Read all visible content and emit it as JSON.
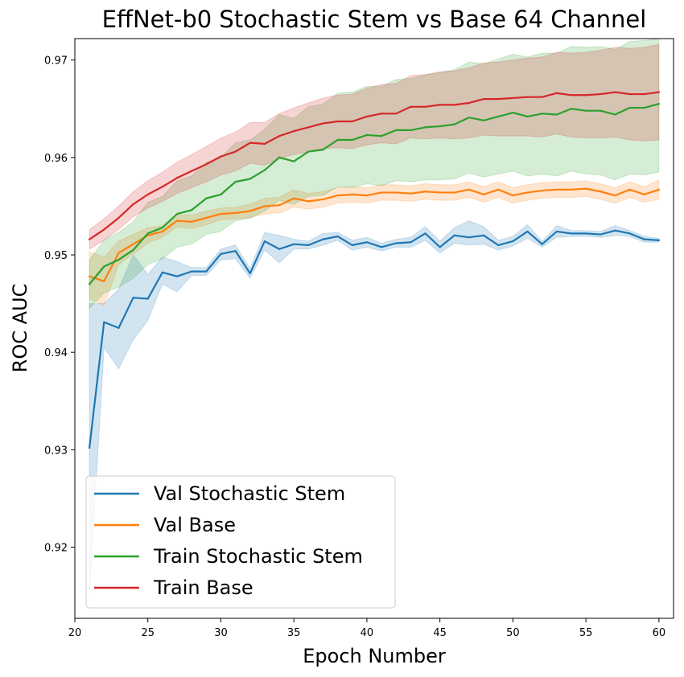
{
  "chart_data": {
    "type": "line",
    "title": "EffNet-b0 Stochastic Stem vs Base 64 Channel",
    "xlabel": "Epoch Number",
    "ylabel": "ROC AUC",
    "xlim": [
      20,
      61
    ],
    "ylim": [
      0.9127,
      0.9722
    ],
    "xticks": [
      20,
      25,
      30,
      35,
      40,
      45,
      50,
      55,
      60
    ],
    "xtick_labels": [
      "20",
      "25",
      "30",
      "35",
      "40",
      "45",
      "50",
      "55",
      "60"
    ],
    "yticks": [
      0.92,
      0.93,
      0.94,
      0.95,
      0.96,
      0.97
    ],
    "ytick_labels": [
      "0.92",
      "0.93",
      "0.94",
      "0.95",
      "0.96",
      "0.97"
    ],
    "grid": false,
    "legend_position": "lower-left",
    "x": [
      21,
      22,
      23,
      24,
      25,
      26,
      27,
      28,
      29,
      30,
      31,
      32,
      33,
      34,
      35,
      36,
      37,
      38,
      39,
      40,
      41,
      42,
      43,
      44,
      45,
      46,
      47,
      48,
      49,
      50,
      51,
      52,
      53,
      54,
      55,
      56,
      57,
      58,
      59,
      60
    ],
    "series": [
      {
        "name": "Val Stochastic Stem",
        "color": "#1f77b4",
        "values": [
          0.9302,
          0.9431,
          0.9425,
          0.9456,
          0.9455,
          0.9482,
          0.9478,
          0.9483,
          0.9483,
          0.9501,
          0.9504,
          0.9481,
          0.9514,
          0.9506,
          0.9511,
          0.951,
          0.9516,
          0.9519,
          0.951,
          0.9513,
          0.9508,
          0.9512,
          0.9513,
          0.9522,
          0.9508,
          0.952,
          0.9518,
          0.952,
          0.951,
          0.9514,
          0.9524,
          0.9511,
          0.9524,
          0.9522,
          0.9522,
          0.9521,
          0.9525,
          0.9522,
          0.9516,
          0.9515
        ],
        "lower": [
          0.915,
          0.9405,
          0.9383,
          0.9413,
          0.9433,
          0.947,
          0.9462,
          0.9479,
          0.9479,
          0.9495,
          0.9496,
          0.9476,
          0.9505,
          0.9492,
          0.9506,
          0.9506,
          0.951,
          0.9515,
          0.9505,
          0.9508,
          0.9504,
          0.9508,
          0.9508,
          0.9515,
          0.9502,
          0.9512,
          0.951,
          0.9511,
          0.9505,
          0.9509,
          0.9517,
          0.9508,
          0.9518,
          0.9519,
          0.9519,
          0.9518,
          0.952,
          0.9519,
          0.9513,
          0.9513
        ],
        "upper": [
          0.945,
          0.945,
          0.9465,
          0.95,
          0.948,
          0.9498,
          0.9493,
          0.9487,
          0.9487,
          0.9506,
          0.951,
          0.9486,
          0.9523,
          0.952,
          0.9516,
          0.9514,
          0.9522,
          0.9523,
          0.9515,
          0.9518,
          0.9512,
          0.9516,
          0.9518,
          0.9529,
          0.9514,
          0.9528,
          0.9535,
          0.9529,
          0.9515,
          0.9519,
          0.9531,
          0.9514,
          0.953,
          0.9525,
          0.9525,
          0.9524,
          0.953,
          0.9525,
          0.9519,
          0.9517
        ]
      },
      {
        "name": "Val Base",
        "color": "#ff7f0e",
        "values": [
          0.9478,
          0.9473,
          0.9502,
          0.9511,
          0.952,
          0.9524,
          0.9535,
          0.9534,
          0.9538,
          0.9542,
          0.9543,
          0.9545,
          0.955,
          0.9551,
          0.9558,
          0.9555,
          0.9557,
          0.9561,
          0.9562,
          0.9561,
          0.9564,
          0.9564,
          0.9563,
          0.9565,
          0.9564,
          0.9564,
          0.9567,
          0.9562,
          0.9567,
          0.9561,
          0.9564,
          0.9566,
          0.9567,
          0.9567,
          0.9568,
          0.9565,
          0.9561,
          0.9567,
          0.9562,
          0.9567
        ],
        "lower": [
          0.9455,
          0.9448,
          0.949,
          0.9501,
          0.9512,
          0.9518,
          0.9529,
          0.9527,
          0.9531,
          0.9536,
          0.9537,
          0.9538,
          0.9542,
          0.9543,
          0.9549,
          0.9547,
          0.9549,
          0.9553,
          0.9554,
          0.9553,
          0.9556,
          0.9556,
          0.9555,
          0.9557,
          0.9556,
          0.9556,
          0.9559,
          0.9554,
          0.9559,
          0.9553,
          0.9556,
          0.9558,
          0.9559,
          0.9559,
          0.956,
          0.9557,
          0.9553,
          0.9559,
          0.9554,
          0.9557
        ],
        "upper": [
          0.9503,
          0.9498,
          0.9514,
          0.9521,
          0.9528,
          0.953,
          0.9541,
          0.9541,
          0.9545,
          0.9548,
          0.9549,
          0.9552,
          0.9558,
          0.9559,
          0.9567,
          0.9563,
          0.9565,
          0.9569,
          0.957,
          0.9569,
          0.9572,
          0.9572,
          0.9571,
          0.9573,
          0.9572,
          0.9572,
          0.9575,
          0.957,
          0.9575,
          0.9569,
          0.9572,
          0.9574,
          0.9575,
          0.9575,
          0.9576,
          0.9573,
          0.9569,
          0.9575,
          0.957,
          0.9577
        ]
      },
      {
        "name": "Train Stochastic Stem",
        "color": "#2ca02c",
        "values": [
          0.947,
          0.9488,
          0.9495,
          0.9505,
          0.9522,
          0.9528,
          0.9542,
          0.9546,
          0.9558,
          0.9562,
          0.9575,
          0.9578,
          0.9587,
          0.96,
          0.9596,
          0.9606,
          0.9608,
          0.9618,
          0.9618,
          0.9623,
          0.9622,
          0.9628,
          0.9628,
          0.9631,
          0.9632,
          0.9634,
          0.9641,
          0.9638,
          0.9642,
          0.9646,
          0.9642,
          0.9645,
          0.9644,
          0.965,
          0.9648,
          0.9648,
          0.9644,
          0.9651,
          0.9651,
          0.9655
        ],
        "lower": [
          0.9445,
          0.9461,
          0.9467,
          0.9476,
          0.949,
          0.9496,
          0.9508,
          0.9511,
          0.9521,
          0.9524,
          0.9535,
          0.9538,
          0.9545,
          0.9556,
          0.9552,
          0.956,
          0.9561,
          0.957,
          0.9569,
          0.9573,
          0.9571,
          0.9576,
          0.9575,
          0.9577,
          0.9577,
          0.9578,
          0.9584,
          0.958,
          0.9583,
          0.9586,
          0.9581,
          0.9583,
          0.9581,
          0.9586,
          0.9583,
          0.9582,
          0.9577,
          0.9583,
          0.9582,
          0.9585
        ],
        "upper": [
          0.9495,
          0.9515,
          0.9523,
          0.9534,
          0.9554,
          0.956,
          0.9576,
          0.9581,
          0.9595,
          0.96,
          0.9615,
          0.9618,
          0.9629,
          0.9644,
          0.964,
          0.9652,
          0.9655,
          0.9666,
          0.9667,
          0.9673,
          0.9673,
          0.968,
          0.9681,
          0.9685,
          0.9687,
          0.969,
          0.9698,
          0.9696,
          0.9701,
          0.9706,
          0.9703,
          0.9707,
          0.9707,
          0.9714,
          0.9713,
          0.9714,
          0.9711,
          0.9719,
          0.972,
          0.9722
        ]
      },
      {
        "name": "Train Base",
        "color": "#d62728",
        "values": [
          0.9516,
          0.9526,
          0.9538,
          0.9552,
          0.9562,
          0.957,
          0.9579,
          0.9586,
          0.9593,
          0.9601,
          0.9606,
          0.9615,
          0.9614,
          0.9622,
          0.9627,
          0.9631,
          0.9635,
          0.9637,
          0.9637,
          0.9642,
          0.9645,
          0.9645,
          0.9652,
          0.9652,
          0.9654,
          0.9654,
          0.9656,
          0.966,
          0.966,
          0.9661,
          0.9662,
          0.9662,
          0.9666,
          0.9664,
          0.9664,
          0.9665,
          0.9667,
          0.9665,
          0.9665,
          0.9667
        ],
        "lower": [
          0.9506,
          0.9515,
          0.9526,
          0.9539,
          0.9548,
          0.9555,
          0.9563,
          0.9569,
          0.9575,
          0.9582,
          0.9586,
          0.9594,
          0.9592,
          0.9599,
          0.9603,
          0.9606,
          0.9609,
          0.961,
          0.9609,
          0.9613,
          0.9615,
          0.9614,
          0.962,
          0.9619,
          0.962,
          0.9619,
          0.962,
          0.9623,
          0.9622,
          0.9622,
          0.9622,
          0.9621,
          0.9624,
          0.9621,
          0.962,
          0.962,
          0.9621,
          0.9618,
          0.9617,
          0.9618
        ],
        "upper": [
          0.9526,
          0.9537,
          0.955,
          0.9565,
          0.9576,
          0.9585,
          0.9595,
          0.9603,
          0.9611,
          0.962,
          0.9626,
          0.9636,
          0.9636,
          0.9645,
          0.9651,
          0.9656,
          0.9661,
          0.9664,
          0.9665,
          0.9671,
          0.9675,
          0.9676,
          0.9684,
          0.9685,
          0.9688,
          0.9689,
          0.9692,
          0.9697,
          0.9698,
          0.97,
          0.9702,
          0.9703,
          0.9708,
          0.9707,
          0.9708,
          0.971,
          0.9713,
          0.9712,
          0.9713,
          0.9716
        ]
      }
    ]
  }
}
